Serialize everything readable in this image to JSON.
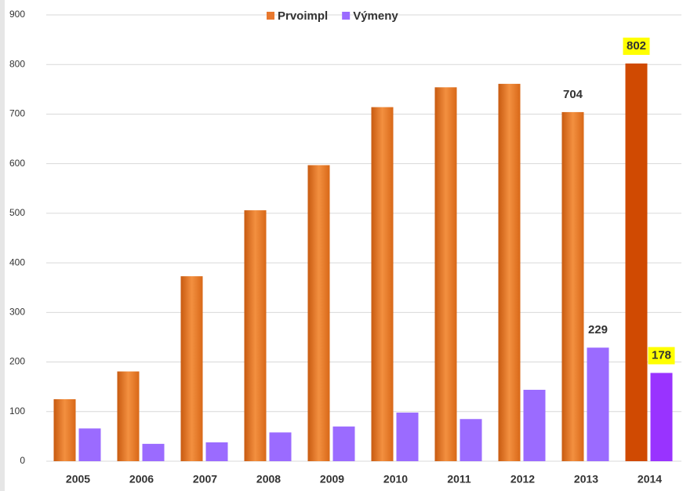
{
  "chart_data": {
    "type": "bar",
    "categories": [
      "2005",
      "2006",
      "2007",
      "2008",
      "2009",
      "2010",
      "2011",
      "2012",
      "2013",
      "2014"
    ],
    "series": [
      {
        "name": "Prvoimpl",
        "color": "#e8782e",
        "highlight_color": "#d04a02",
        "values": [
          125,
          181,
          373,
          506,
          597,
          714,
          754,
          761,
          704,
          802
        ]
      },
      {
        "name": "Výmeny",
        "color": "#9b6bff",
        "highlight_color": "#9933ff",
        "values": [
          66,
          35,
          38,
          58,
          70,
          98,
          85,
          144,
          229,
          178
        ]
      }
    ],
    "ylim": [
      0,
      900
    ],
    "yticks": [
      0,
      100,
      200,
      300,
      400,
      500,
      600,
      700,
      800,
      900
    ],
    "grid": true
  }
}
